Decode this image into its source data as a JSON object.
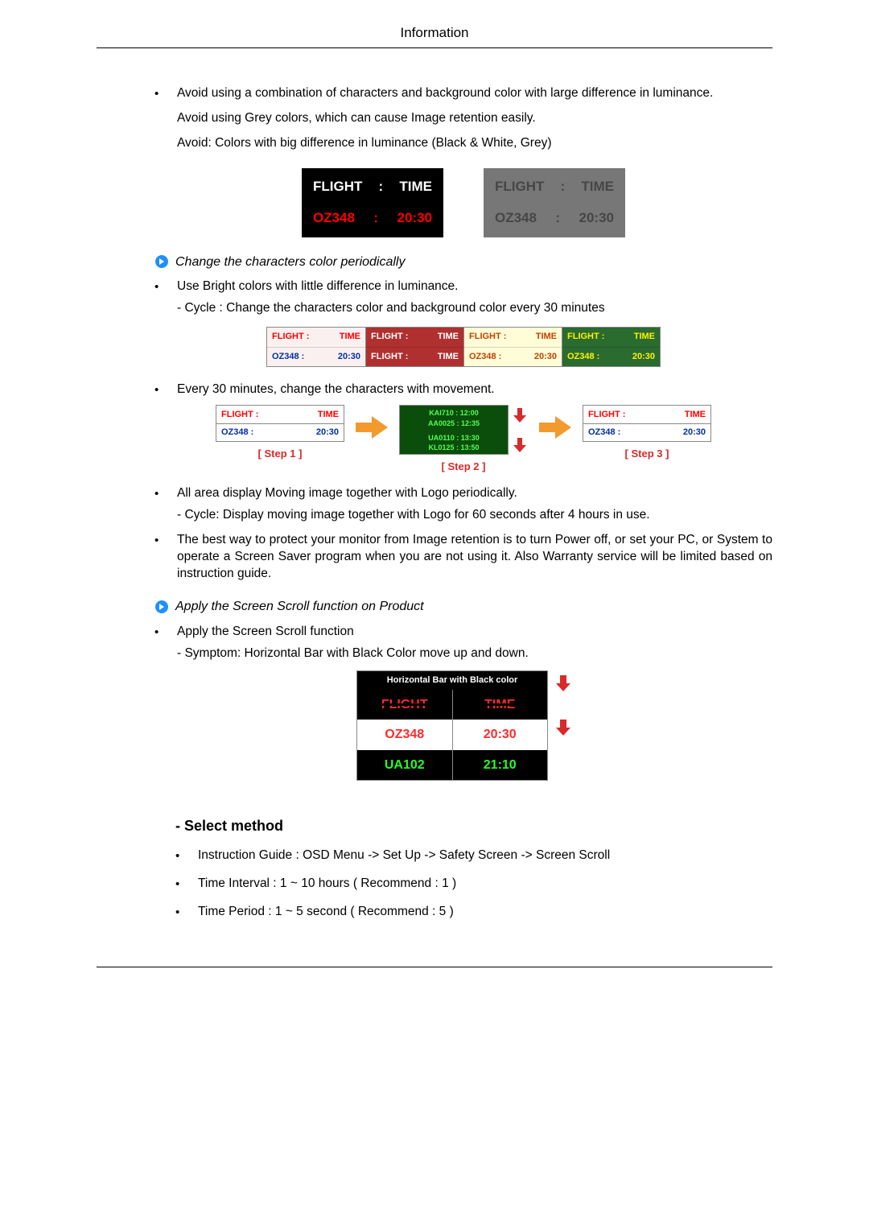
{
  "header_title": "Information",
  "b_avoid_combo": "Avoid using a combination of characters and background color with large difference in luminance.",
  "b_avoid_grey": "Avoid using Grey colors, which can cause Image retention easily.",
  "b_avoid_colors": "Avoid: Colors with big difference in luminance (Black & White, Grey)",
  "flight_label": "FLIGHT",
  "time_label": "TIME",
  "sep": ":",
  "flight_code": "OZ348",
  "flight_time": "20:30",
  "fig1_dark_row1_color": "#ffffff",
  "fig1_dark_row2_color": "#ff0000",
  "fig1_dark_bg": "#000000",
  "fig1_grey_bg": "#777777",
  "fig1_grey_text": "#464646",
  "sect_heading_1": "Change the characters color periodically",
  "b_bright": "Use Bright colors with little difference in luminance.",
  "b_cycle30": "- Cycle : Change the characters color and background color every 30 minutes",
  "tiles": [
    {
      "bg": "#fbf0f0",
      "row1_color": "#ff0000",
      "row2_color": "#002fa0",
      "row1_a": "FLIGHT :",
      "row1_b": "TIME",
      "row2_a": "OZ348   :",
      "row2_b": "20:30"
    },
    {
      "bg": "#b03030",
      "row1_color": "#ffffff",
      "row2_color": "#ffffff",
      "row1_a": "FLIGHT :",
      "row1_b": "TIME",
      "row2_a": "FLIGHT :",
      "row2_b": "TIME"
    },
    {
      "bg": "#fffcd8",
      "row1_color": "#c24300",
      "row2_color": "#c24300",
      "row1_a": "FLIGHT  :",
      "row1_b": "TIME",
      "row2_a": "OZ348   :",
      "row2_b": "20:30"
    },
    {
      "bg": "#2a6b2f",
      "row1_color": "#fff200",
      "row2_color": "#fff200",
      "row1_a": "FLIGHT :",
      "row1_b": "TIME",
      "row2_a": "OZ348   :",
      "row2_b": "20:30"
    }
  ],
  "b_every30": "Every 30 minutes, change the characters with movement.",
  "step_labels": [
    "[ Step 1 ]",
    "[ Step 2 ]",
    "[ Step 3 ]"
  ],
  "step_label_color": "#d82a2a",
  "fatarrow_fill": "#f29a2e",
  "redarrow_fill": "#d82a2a",
  "step1_data": {
    "bg": "#ffffff",
    "row1_color": "#ff0000",
    "row2_color": "#002fa0",
    "row1_a": "FLIGHT :",
    "row1_b": "TIME",
    "row2_a": "OZ348   :",
    "row2_b": "20:30"
  },
  "step2_line1": "KAI710 : 12:00",
  "step2_line2": "AA0025 : 12:35",
  "step2_line3": "UA0110 : 13:30",
  "step2_line4": "KL0125 : 13:50",
  "step2_bg": "#0b4d0b",
  "step2_color": "#51ff51",
  "step3_data": {
    "bg": "#ffffff",
    "row1_color": "#ff0000",
    "row2_color": "#002fa0",
    "row1_a": "FLIGHT :",
    "row1_b": "TIME",
    "row2_a": "OZ348   :",
    "row2_b": "20:30"
  },
  "b_allarea": "All area display Moving image together with Logo periodically.",
  "b_allarea_sub": "- Cycle: Display moving image together with Logo for 60 seconds after 4 hours in use.",
  "b_bestway": "The best way to protect your monitor from Image retention is to turn Power off, or set your PC, or System to operate a Screen Saver program when you are not using it. Also Warranty service will be limited based on instruction guide.",
  "sect_heading_2": "Apply the Screen Scroll function on Product",
  "b_apply_scroll": "Apply the Screen Scroll function",
  "b_symptom": "- Symptom: Horizontal Bar with Black Color move up and down.",
  "hbar": {
    "caption": "Horizontal Bar with Black color",
    "rows": [
      {
        "a": "FLIGHT",
        "b": "TIME",
        "bg": "#000000",
        "fg": "#ff2a2a",
        "struck": true
      },
      {
        "a": "OZ348",
        "b": "20:30",
        "bg": "#ffffff",
        "fg": "#ff2a2a",
        "struck": false
      },
      {
        "a": "UA102",
        "b": "21:10",
        "bg": "#000000",
        "fg": "#27ff27",
        "struck": false
      }
    ]
  },
  "select_method_heading": "- Select method",
  "m1": "Instruction Guide : OSD Menu -> Set Up -> Safety Screen -> Screen Scroll",
  "m2": "Time Interval : 1 ~ 10 hours ( Recommend : 1 )",
  "m3": "Time Period : 1 ~ 5 second ( Recommend : 5 )",
  "arrow_circle_fill": "#1e90ff",
  "arrow_circle_arrow": "#ffffff"
}
